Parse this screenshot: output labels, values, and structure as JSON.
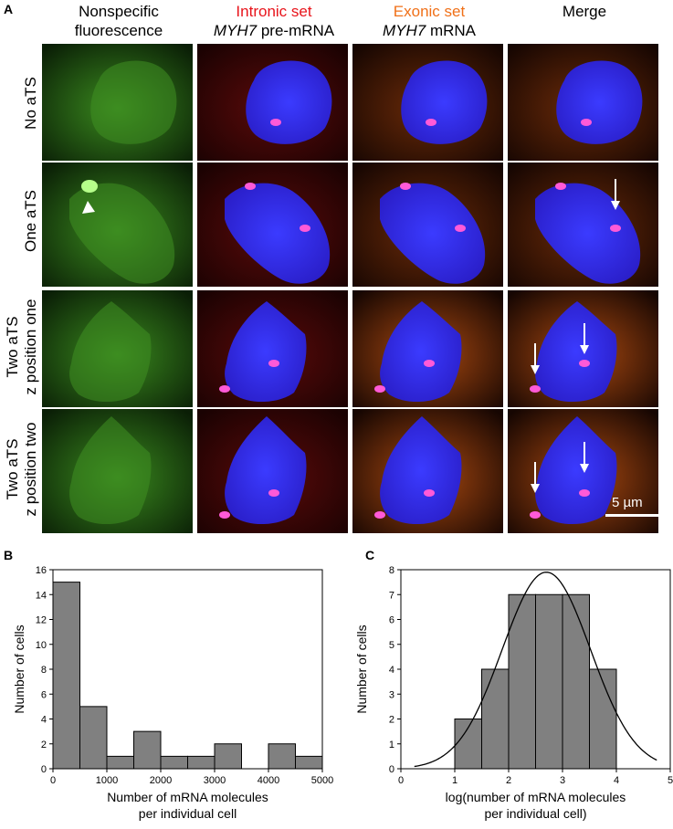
{
  "panelA": {
    "letter": "A",
    "columns": [
      {
        "line1": "Nonspecific",
        "line2": "fluorescence",
        "color": "#000000",
        "italic_prefix": ""
      },
      {
        "line1": "Intronic set",
        "line2_italic": "MYH7",
        "line2": " pre-mRNA",
        "color": "#e8141b"
      },
      {
        "line1": "Exonic set",
        "line2_italic": "MYH7",
        "line2": " mRNA",
        "color": "#f07018"
      },
      {
        "line1": "Merge",
        "line2": "",
        "color": "#000000"
      }
    ],
    "rows": [
      {
        "line1": "No aTS",
        "line2": ""
      },
      {
        "line1": "One aTS",
        "line2": ""
      },
      {
        "line1": "Two aTS",
        "line2": "z position one"
      },
      {
        "line1": "Two aTS",
        "line2": "z position two"
      }
    ],
    "scale_bar_label": "5 µm",
    "colors": {
      "green": "#3a8a1e",
      "red": "#5a0a0a",
      "orange": "#a84810",
      "blue": "#3a2ae0",
      "arrow": "#ffffff"
    }
  },
  "panelB": {
    "letter": "B",
    "chart_data": {
      "type": "bar",
      "bin_edges": [
        0,
        500,
        1000,
        1500,
        2000,
        2500,
        3000,
        3500,
        4000,
        4500,
        5000
      ],
      "values": [
        15,
        5,
        1,
        3,
        1,
        1,
        2,
        0,
        2,
        1
      ],
      "xlabel": "Number of mRNA molecules",
      "xlabel2": "per individual cell",
      "ylabel": "Number of cells",
      "xlim": [
        0,
        5000
      ],
      "ylim": [
        0,
        16
      ],
      "xticks": [
        0,
        1000,
        2000,
        3000,
        4000,
        5000
      ],
      "yticks": [
        0,
        2,
        4,
        6,
        8,
        10,
        12,
        14,
        16
      ],
      "bar_color": "#808080"
    }
  },
  "panelC": {
    "letter": "C",
    "chart_data": {
      "type": "bar",
      "bin_edges": [
        1.0,
        1.5,
        2.0,
        2.5,
        3.0,
        3.5,
        4.0
      ],
      "values": [
        2,
        4,
        7,
        7,
        7,
        4
      ],
      "fit_curve": {
        "type": "normal",
        "mean": 2.7,
        "peak": 7.9,
        "sd": 0.82,
        "x_range": [
          0.25,
          4.75
        ]
      },
      "xlabel": "log(number of mRNA molecules",
      "xlabel2": "per individual cell)",
      "ylabel": "Number of cells",
      "xlim": [
        0,
        5
      ],
      "ylim": [
        0,
        8
      ],
      "xticks": [
        0,
        1,
        2,
        3,
        4,
        5
      ],
      "yticks": [
        0,
        1,
        2,
        3,
        4,
        5,
        6,
        7,
        8
      ],
      "bar_color": "#808080"
    }
  }
}
